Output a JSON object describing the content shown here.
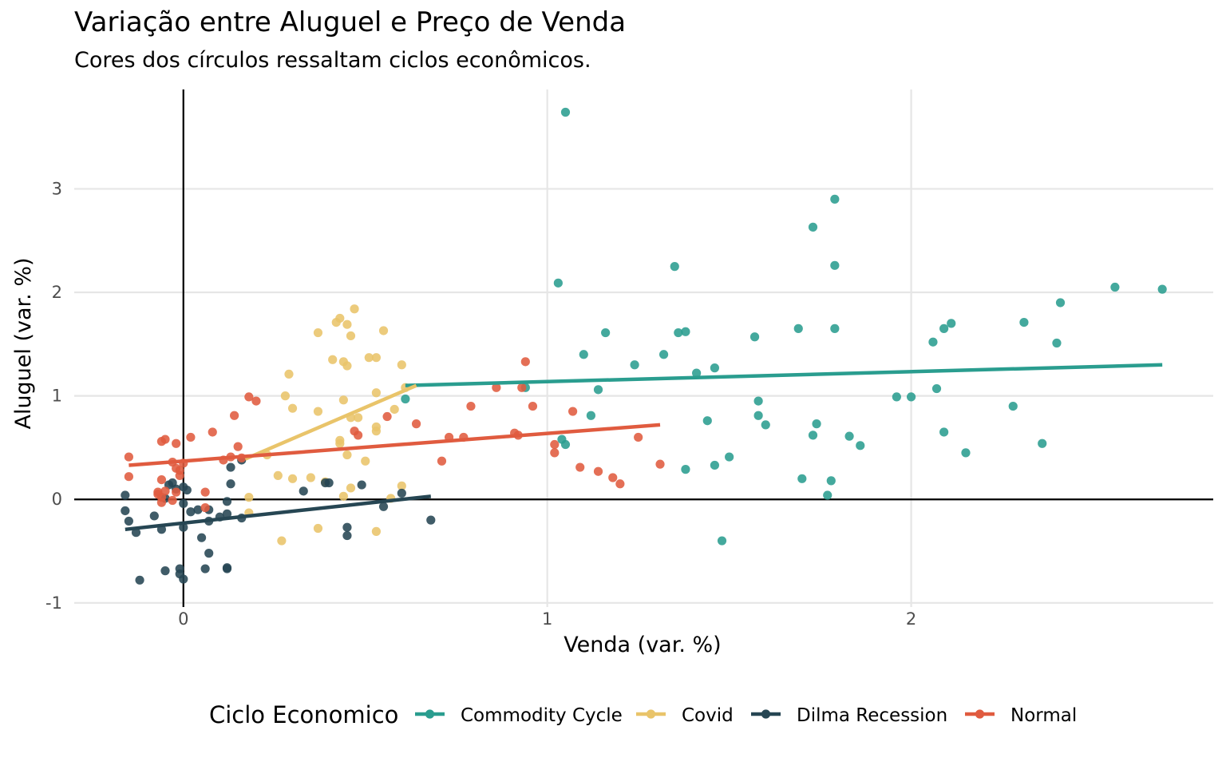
{
  "chart_data": {
    "type": "scatter",
    "title": "Variação entre Aluguel e Preço de Venda",
    "subtitle": "Cores dos círculos ressaltam ciclos econômicos.",
    "xlabel": "Venda (var. %)",
    "ylabel": "Aluguel (var. %)",
    "xlim": [
      -0.3,
      2.83
    ],
    "ylim": [
      -1.04,
      3.96
    ],
    "xticks": [
      0,
      1,
      2
    ],
    "yticks": [
      -1,
      0,
      1,
      2,
      3
    ],
    "xtick_labels": [
      "0",
      "1",
      "2"
    ],
    "ytick_labels": [
      "-1",
      "0",
      "1",
      "2",
      "3"
    ],
    "grid": true,
    "reference_lines": {
      "x": 0,
      "y": 0
    },
    "legend": {
      "title": "Ciclo Economico",
      "position": "bottom"
    },
    "series": [
      {
        "name": "Commodity Cycle",
        "color": "#2a9d8f",
        "trend": {
          "x": [
            0.61,
            2.69
          ],
          "y": [
            1.1,
            1.3
          ]
        },
        "points": [
          [
            1.05,
            3.74
          ],
          [
            1.03,
            2.09
          ],
          [
            1.79,
            2.9
          ],
          [
            1.73,
            2.63
          ],
          [
            1.79,
            2.26
          ],
          [
            1.35,
            2.25
          ],
          [
            2.56,
            2.05
          ],
          [
            2.69,
            2.03
          ],
          [
            2.41,
            1.9
          ],
          [
            2.31,
            1.71
          ],
          [
            2.11,
            1.7
          ],
          [
            2.09,
            1.65
          ],
          [
            2.06,
            1.52
          ],
          [
            2.4,
            1.51
          ],
          [
            1.79,
            1.65
          ],
          [
            1.69,
            1.65
          ],
          [
            1.57,
            1.57
          ],
          [
            1.38,
            1.62
          ],
          [
            1.36,
            1.61
          ],
          [
            1.16,
            1.61
          ],
          [
            1.1,
            1.4
          ],
          [
            1.32,
            1.4
          ],
          [
            1.24,
            1.3
          ],
          [
            1.46,
            1.27
          ],
          [
            1.41,
            1.22
          ],
          [
            0.94,
            1.08
          ],
          [
            1.14,
            1.06
          ],
          [
            0.61,
            0.97
          ],
          [
            1.96,
            0.99
          ],
          [
            2.0,
            0.99
          ],
          [
            2.07,
            1.07
          ],
          [
            2.28,
            0.9
          ],
          [
            1.58,
            0.95
          ],
          [
            1.58,
            0.81
          ],
          [
            1.6,
            0.72
          ],
          [
            1.44,
            0.76
          ],
          [
            1.12,
            0.81
          ],
          [
            1.74,
            0.73
          ],
          [
            1.73,
            0.62
          ],
          [
            1.83,
            0.61
          ],
          [
            1.86,
            0.52
          ],
          [
            2.09,
            0.65
          ],
          [
            2.36,
            0.54
          ],
          [
            2.15,
            0.45
          ],
          [
            1.04,
            0.58
          ],
          [
            1.05,
            0.53
          ],
          [
            1.5,
            0.41
          ],
          [
            1.46,
            0.33
          ],
          [
            1.38,
            0.29
          ],
          [
            1.7,
            0.2
          ],
          [
            1.78,
            0.18
          ],
          [
            1.77,
            0.04
          ],
          [
            1.48,
            -0.4
          ]
        ]
      },
      {
        "name": "Covid",
        "color": "#e9c46a",
        "trend": {
          "x": [
            0.17,
            0.64
          ],
          "y": [
            0.39,
            1.1
          ]
        },
        "points": [
          [
            0.47,
            1.84
          ],
          [
            0.43,
            1.75
          ],
          [
            0.42,
            1.71
          ],
          [
            0.45,
            1.69
          ],
          [
            0.55,
            1.63
          ],
          [
            0.37,
            1.61
          ],
          [
            0.46,
            1.58
          ],
          [
            0.41,
            1.35
          ],
          [
            0.44,
            1.33
          ],
          [
            0.51,
            1.37
          ],
          [
            0.53,
            1.37
          ],
          [
            0.45,
            1.29
          ],
          [
            0.6,
            1.3
          ],
          [
            0.29,
            1.21
          ],
          [
            0.53,
            1.03
          ],
          [
            0.28,
            1.0
          ],
          [
            0.61,
            1.08
          ],
          [
            0.44,
            0.96
          ],
          [
            0.3,
            0.88
          ],
          [
            0.37,
            0.85
          ],
          [
            0.58,
            0.87
          ],
          [
            0.46,
            0.79
          ],
          [
            0.48,
            0.79
          ],
          [
            0.53,
            0.7
          ],
          [
            0.53,
            0.66
          ],
          [
            0.43,
            0.57
          ],
          [
            0.43,
            0.54
          ],
          [
            0.45,
            0.43
          ],
          [
            0.5,
            0.37
          ],
          [
            0.23,
            0.43
          ],
          [
            0.26,
            0.23
          ],
          [
            0.3,
            0.2
          ],
          [
            0.35,
            0.21
          ],
          [
            0.39,
            0.17
          ],
          [
            0.46,
            0.11
          ],
          [
            0.6,
            0.13
          ],
          [
            0.18,
            0.02
          ],
          [
            0.44,
            0.03
          ],
          [
            0.57,
            0.01
          ],
          [
            0.18,
            -0.13
          ],
          [
            0.37,
            -0.28
          ],
          [
            0.53,
            -0.31
          ],
          [
            0.27,
            -0.4
          ]
        ]
      },
      {
        "name": "Dilma Recession",
        "color": "#264653",
        "trend": {
          "x": [
            -0.16,
            0.68
          ],
          "y": [
            -0.29,
            0.03
          ]
        },
        "points": [
          [
            0.13,
            0.31
          ],
          [
            0.16,
            0.38
          ],
          [
            0.13,
            0.15
          ],
          [
            0.33,
            0.08
          ],
          [
            0.39,
            0.16
          ],
          [
            0.4,
            0.16
          ],
          [
            0.49,
            0.14
          ],
          [
            0.6,
            0.06
          ],
          [
            -0.03,
            0.16
          ],
          [
            -0.04,
            0.14
          ],
          [
            -0.02,
            0.1
          ],
          [
            0.01,
            0.09
          ],
          [
            0.0,
            0.12
          ],
          [
            -0.16,
            0.04
          ],
          [
            -0.05,
            0.01
          ],
          [
            0.12,
            -0.02
          ],
          [
            0.0,
            -0.04
          ],
          [
            -0.16,
            -0.11
          ],
          [
            -0.15,
            -0.21
          ],
          [
            -0.08,
            -0.16
          ],
          [
            -0.06,
            -0.29
          ],
          [
            -0.13,
            -0.32
          ],
          [
            0.0,
            -0.27
          ],
          [
            0.02,
            -0.12
          ],
          [
            0.04,
            -0.1
          ],
          [
            0.07,
            -0.1
          ],
          [
            0.1,
            -0.17
          ],
          [
            0.12,
            -0.14
          ],
          [
            0.16,
            -0.18
          ],
          [
            0.07,
            -0.21
          ],
          [
            0.05,
            -0.37
          ],
          [
            0.07,
            -0.52
          ],
          [
            0.12,
            -0.66
          ],
          [
            0.12,
            -0.67
          ],
          [
            0.06,
            -0.67
          ],
          [
            -0.01,
            -0.67
          ],
          [
            -0.05,
            -0.69
          ],
          [
            -0.01,
            -0.72
          ],
          [
            -0.12,
            -0.78
          ],
          [
            0.0,
            -0.77
          ],
          [
            0.45,
            -0.27
          ],
          [
            0.45,
            -0.35
          ],
          [
            0.55,
            -0.07
          ],
          [
            0.68,
            -0.2
          ]
        ]
      },
      {
        "name": "Normal",
        "color": "#e05b3f",
        "trend": {
          "x": [
            -0.15,
            1.31
          ],
          "y": [
            0.33,
            0.72
          ]
        },
        "points": [
          [
            0.18,
            0.99
          ],
          [
            0.2,
            0.95
          ],
          [
            0.14,
            0.81
          ],
          [
            0.08,
            0.65
          ],
          [
            0.02,
            0.6
          ],
          [
            0.15,
            0.51
          ],
          [
            -0.05,
            0.58
          ],
          [
            -0.06,
            0.56
          ],
          [
            -0.02,
            0.54
          ],
          [
            -0.15,
            0.41
          ],
          [
            0.11,
            0.38
          ],
          [
            -0.03,
            0.36
          ],
          [
            0.0,
            0.35
          ],
          [
            0.13,
            0.41
          ],
          [
            0.16,
            0.4
          ],
          [
            -0.02,
            0.3
          ],
          [
            -0.01,
            0.28
          ],
          [
            -0.15,
            0.22
          ],
          [
            -0.01,
            0.23
          ],
          [
            -0.06,
            0.19
          ],
          [
            -0.05,
            0.08
          ],
          [
            -0.02,
            0.07
          ],
          [
            0.06,
            0.07
          ],
          [
            -0.07,
            0.07
          ],
          [
            -0.07,
            0.05
          ],
          [
            -0.06,
            0.02
          ],
          [
            -0.06,
            -0.03
          ],
          [
            -0.03,
            -0.01
          ],
          [
            0.06,
            -0.08
          ],
          [
            0.94,
            1.33
          ],
          [
            0.86,
            1.08
          ],
          [
            0.93,
            1.08
          ],
          [
            0.79,
            0.9
          ],
          [
            0.96,
            0.9
          ],
          [
            1.07,
            0.85
          ],
          [
            0.56,
            0.8
          ],
          [
            0.64,
            0.73
          ],
          [
            0.47,
            0.66
          ],
          [
            0.48,
            0.62
          ],
          [
            0.91,
            0.64
          ],
          [
            0.92,
            0.62
          ],
          [
            0.73,
            0.6
          ],
          [
            0.77,
            0.6
          ],
          [
            1.25,
            0.6
          ],
          [
            1.02,
            0.53
          ],
          [
            1.02,
            0.45
          ],
          [
            0.71,
            0.37
          ],
          [
            1.31,
            0.34
          ],
          [
            1.09,
            0.31
          ],
          [
            1.14,
            0.27
          ],
          [
            1.18,
            0.21
          ],
          [
            1.2,
            0.15
          ]
        ]
      }
    ]
  }
}
